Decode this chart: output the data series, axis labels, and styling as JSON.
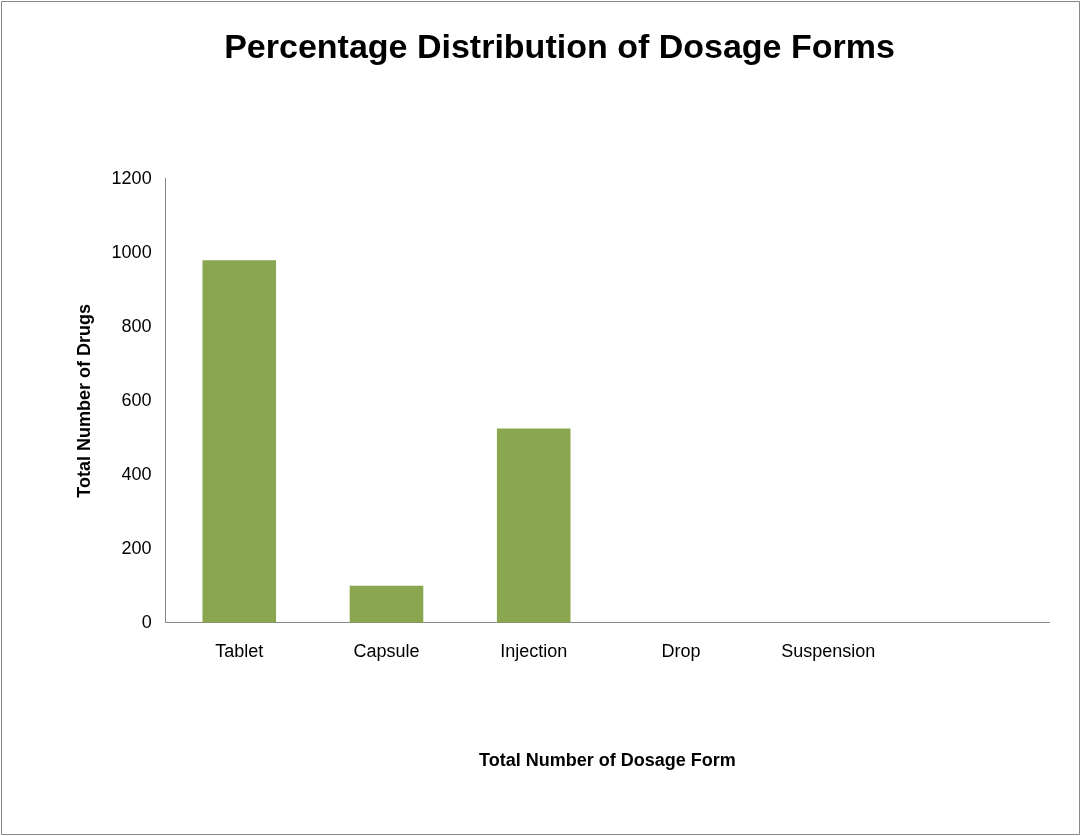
{
  "chart_data": {
    "type": "bar",
    "title": "Percentage Distribution of Dosage Forms",
    "xlabel": "Total Number of Dosage Form",
    "ylabel": "Total Number of Drugs",
    "categories": [
      "Tablet",
      "Capsule",
      "Injection",
      "Drop",
      "Suspension",
      null
    ],
    "values": [
      980,
      100,
      525,
      0,
      0,
      null
    ],
    "color": "#8aa64f",
    "ylim": [
      0,
      1200
    ],
    "yticks": [
      0,
      200,
      400,
      600,
      800,
      1000,
      1200
    ],
    "grid": false,
    "legend": false
  }
}
